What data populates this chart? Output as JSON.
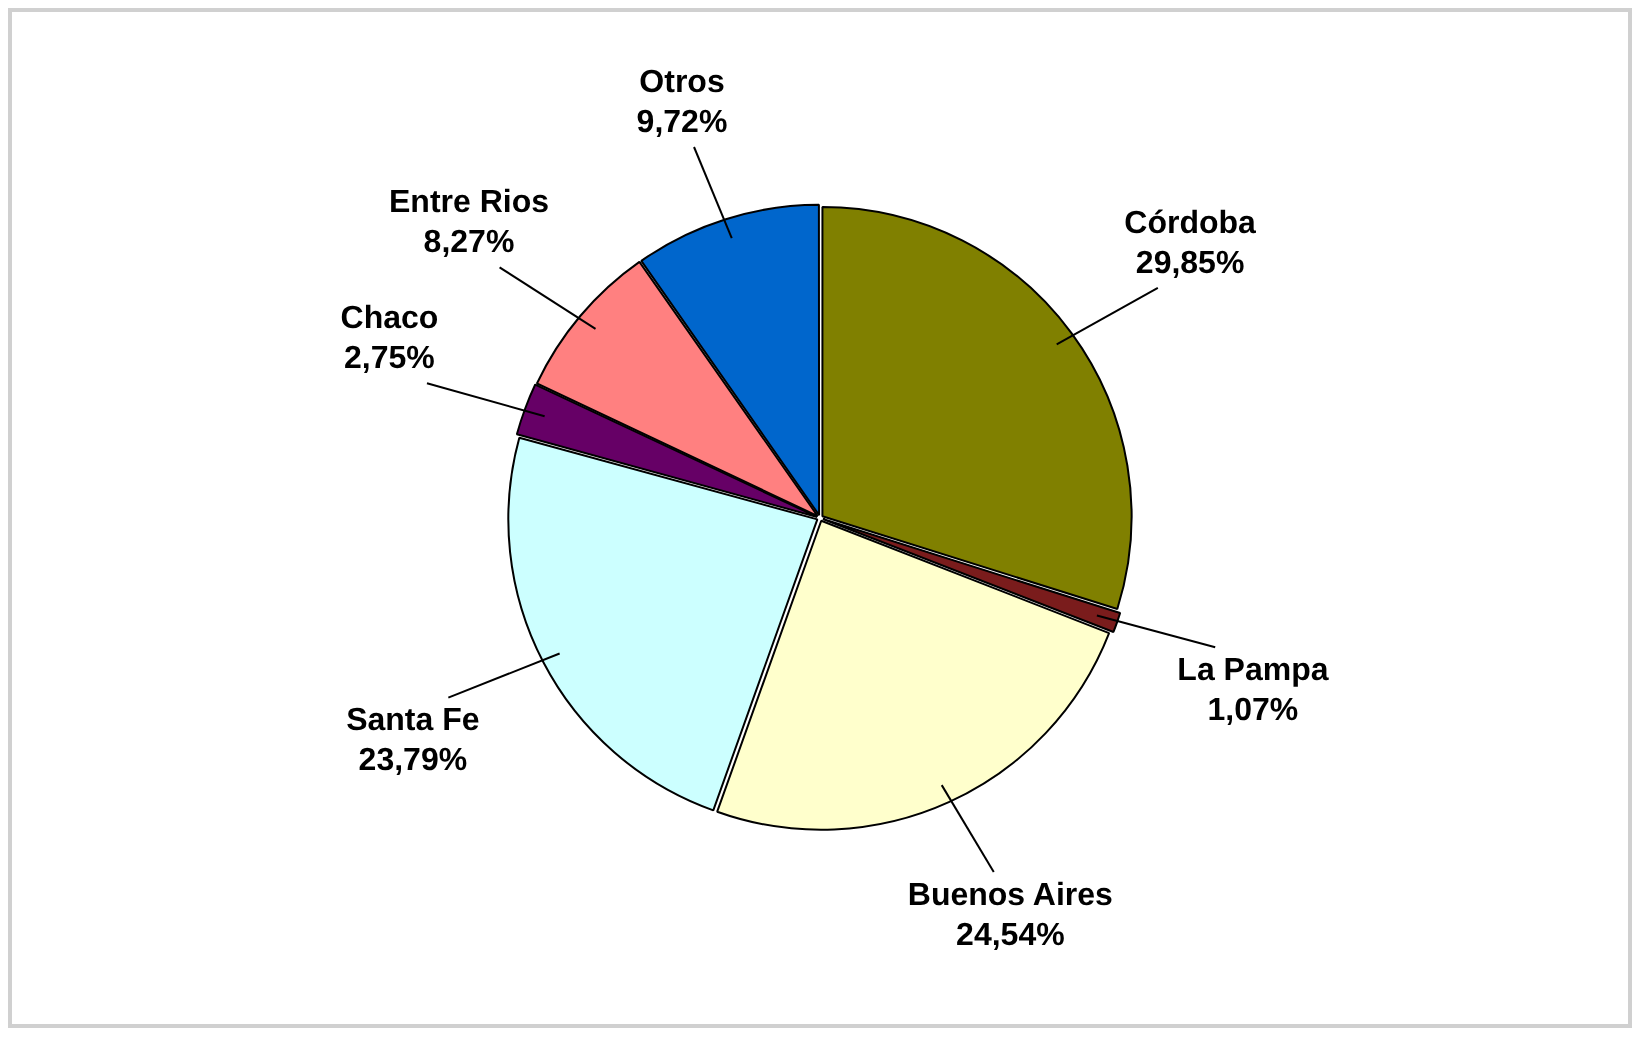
{
  "chart_data": {
    "type": "pie",
    "categories": [
      "Córdoba",
      "La Pampa",
      "Buenos Aires",
      "Santa Fe",
      "Chaco",
      "Entre Rios",
      "Otros"
    ],
    "values": [
      29.85,
      1.07,
      24.54,
      23.79,
      2.75,
      8.27,
      9.72
    ],
    "value_labels": [
      "29,85%",
      "1,07%",
      "24,54%",
      "23,79%",
      "2,75%",
      "8,27%",
      "9,72%"
    ],
    "colors": [
      "#808000",
      "#7a1c1c",
      "#ffffcc",
      "#ccffff",
      "#660066",
      "#ff8080",
      "#0066cc"
    ],
    "legend": false
  }
}
